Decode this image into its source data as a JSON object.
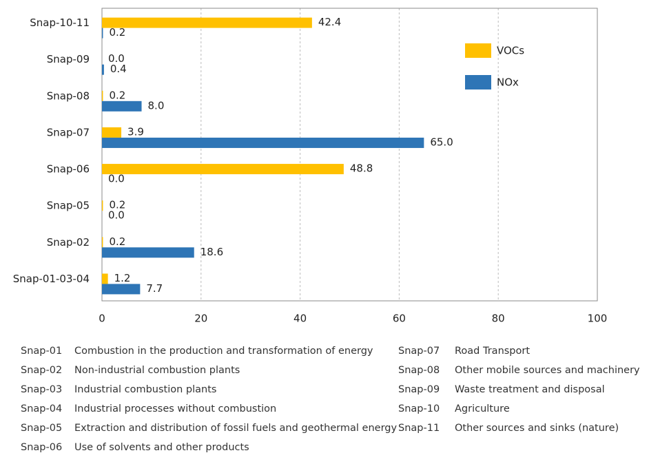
{
  "chart_data": {
    "type": "bar",
    "orientation": "horizontal",
    "categories": [
      "Snap-10-11",
      "Snap-09",
      "Snap-08",
      "Snap-07",
      "Snap-06",
      "Snap-05",
      "Snap-02",
      "Snap-01-03-04"
    ],
    "series": [
      {
        "name": "VOCs",
        "color": "#ffc000",
        "values": [
          42.4,
          0,
          0.2,
          3.9,
          48.8,
          0.2,
          0.2,
          1.2
        ],
        "value_labels": [
          "42.4",
          "0.0",
          "0.2",
          "3.9",
          "48.8",
          "0.2",
          "0.2",
          "1.2"
        ]
      },
      {
        "name": "NOx",
        "color": "#2e75b6",
        "values": [
          0.2,
          0.4,
          8,
          65,
          0,
          0,
          18.6,
          7.7
        ],
        "value_labels": [
          "0.2",
          "0.4",
          "8.0",
          "65.0",
          "0.0",
          "0.0",
          "18.6",
          "7.7"
        ]
      }
    ],
    "xlim": [
      0,
      100
    ],
    "xticks": [
      0,
      20,
      40,
      60,
      80,
      100
    ],
    "grid": true,
    "legend": "upper right"
  },
  "code_table": {
    "columns": [
      [
        [
          "Snap-01",
          "Combustion in the production and transformation of energy"
        ],
        [
          "Snap-02",
          "Non-industrial combustion plants"
        ],
        [
          "Snap-03",
          "Industrial combustion plants"
        ],
        [
          "Snap-04",
          "Industrial processes without combustion"
        ],
        [
          "Snap-05",
          "Extraction and distribution of fossil fuels and geothermal energy"
        ],
        [
          "Snap-06",
          "Use of solvents and other products"
        ]
      ],
      [
        [
          "Snap-07",
          "Road Transport"
        ],
        [
          "Snap-08",
          "Other mobile sources and machinery"
        ],
        [
          "Snap-09",
          "Waste treatment and disposal"
        ],
        [
          "Snap-10",
          "Agriculture"
        ],
        [
          "Snap-11",
          "Other sources and sinks (nature)"
        ]
      ]
    ]
  }
}
